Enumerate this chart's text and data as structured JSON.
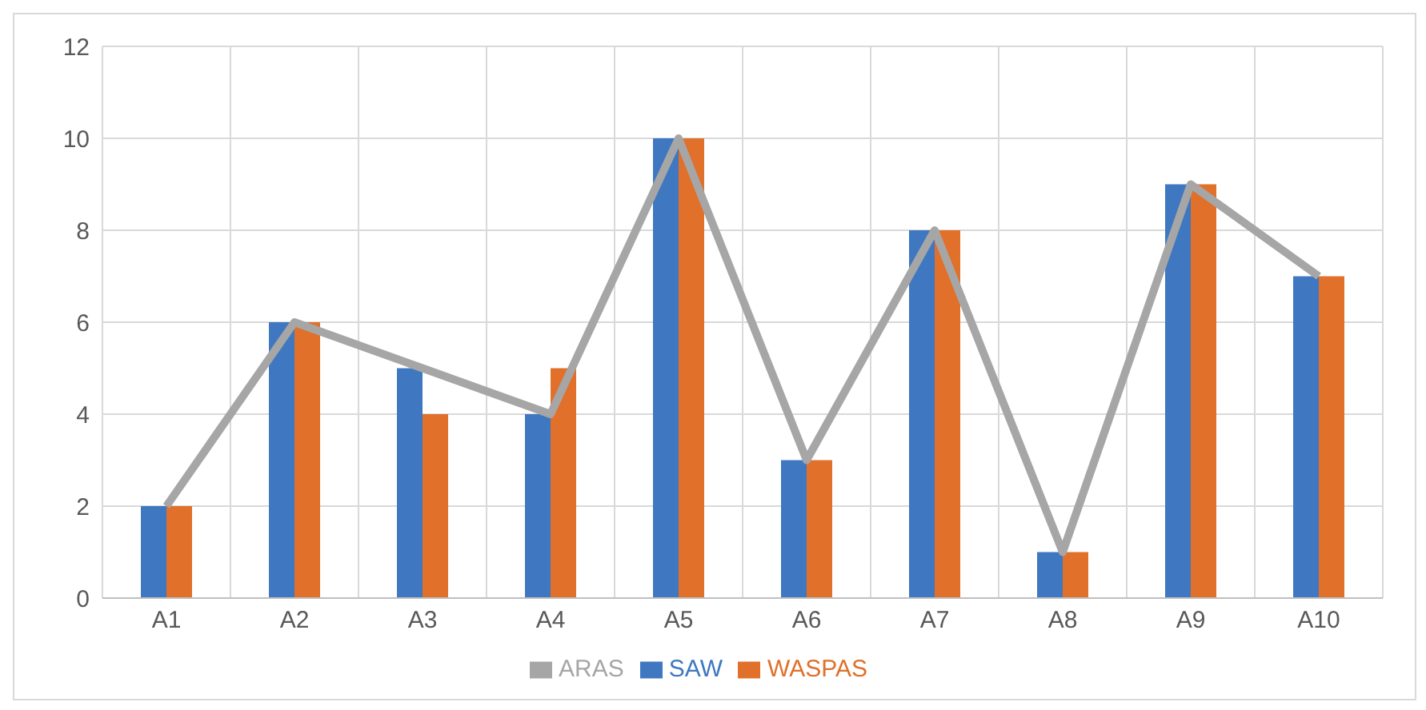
{
  "chart_data": {
    "type": "bar",
    "categories": [
      "A1",
      "A2",
      "A3",
      "A4",
      "A5",
      "A6",
      "A7",
      "A8",
      "A9",
      "A10"
    ],
    "series": [
      {
        "name": "SAW",
        "color": "#3f78c0",
        "values": [
          2,
          6,
          5,
          4,
          10,
          3,
          8,
          1,
          9,
          7
        ]
      },
      {
        "name": "WASPAS",
        "color": "#e0702a",
        "values": [
          2,
          6,
          4,
          5,
          10,
          3,
          8,
          1,
          9,
          7
        ]
      },
      {
        "name": "ARAS",
        "type": "line",
        "color": "#a6a6a6",
        "values": [
          2,
          6,
          5,
          4,
          10,
          3,
          8,
          1,
          9,
          7
        ]
      }
    ],
    "ylim": [
      0,
      12
    ],
    "yticks": [
      0,
      2,
      4,
      6,
      8,
      10,
      12
    ],
    "grid": true,
    "legend": "bottom",
    "marker": "none",
    "line_style": "solid"
  }
}
